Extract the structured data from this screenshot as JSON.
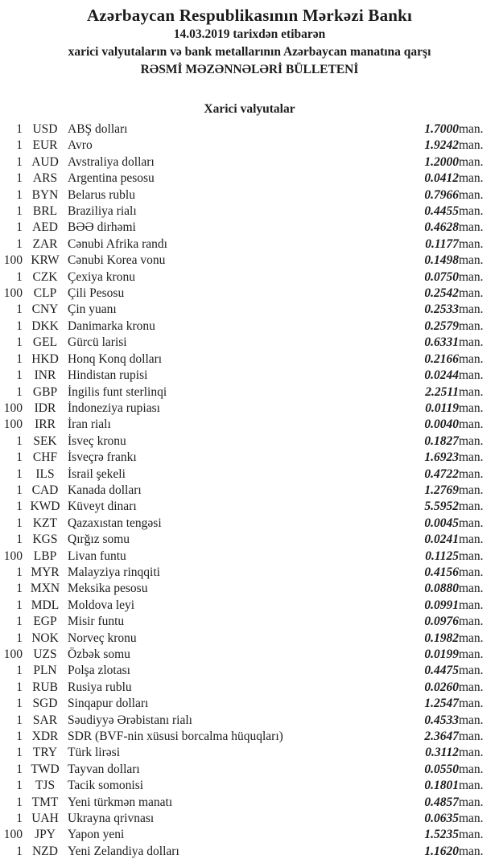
{
  "header": {
    "title": "Azərbaycan Respublikasının Mərkəzi Bankı",
    "date_line": "14.03.2019 tarixdən etibarən",
    "subtitle": "xarici valyutaların və bank metallarının Azərbaycan manatına qarşı",
    "bulletin_line": "RƏSMİ MƏZƏNNƏLƏRİ BÜLLETENİ"
  },
  "section": {
    "title": "Xarici valyutalar"
  },
  "unit_label": "man.",
  "rates": [
    {
      "qty": "1",
      "code": "USD",
      "name": "ABŞ dolları",
      "rate": "1.7000"
    },
    {
      "qty": "1",
      "code": "EUR",
      "name": "Avro",
      "rate": "1.9242"
    },
    {
      "qty": "1",
      "code": "AUD",
      "name": "Avstraliya dolları",
      "rate": "1.2000"
    },
    {
      "qty": "1",
      "code": "ARS",
      "name": "Argentina pesosu",
      "rate": "0.0412"
    },
    {
      "qty": "1",
      "code": "BYN",
      "name": "Belarus rublu",
      "rate": "0.7966"
    },
    {
      "qty": "1",
      "code": "BRL",
      "name": "Braziliya rialı",
      "rate": "0.4455"
    },
    {
      "qty": "1",
      "code": "AED",
      "name": "BƏƏ dirhəmi",
      "rate": "0.4628"
    },
    {
      "qty": "1",
      "code": "ZAR",
      "name": "Cənubi Afrika randı",
      "rate": "0.1177"
    },
    {
      "qty": "100",
      "code": "KRW",
      "name": "Cənubi Korea vonu",
      "rate": "0.1498"
    },
    {
      "qty": "1",
      "code": "CZK",
      "name": "Çexiya kronu",
      "rate": "0.0750"
    },
    {
      "qty": "100",
      "code": "CLP",
      "name": "Çili Pesosu",
      "rate": "0.2542"
    },
    {
      "qty": "1",
      "code": "CNY",
      "name": "Çin yuanı",
      "rate": "0.2533"
    },
    {
      "qty": "1",
      "code": "DKK",
      "name": "Danimarka kronu",
      "rate": "0.2579"
    },
    {
      "qty": "1",
      "code": "GEL",
      "name": "Gürcü larisi",
      "rate": "0.6331"
    },
    {
      "qty": "1",
      "code": "HKD",
      "name": "Honq Konq dolları",
      "rate": "0.2166"
    },
    {
      "qty": "1",
      "code": "INR",
      "name": "Hindistan rupisi",
      "rate": "0.0244"
    },
    {
      "qty": "1",
      "code": "GBP",
      "name": "İngilis funt sterlinqi",
      "rate": "2.2511"
    },
    {
      "qty": "100",
      "code": "IDR",
      "name": "İndoneziya rupiası",
      "rate": "0.0119"
    },
    {
      "qty": "100",
      "code": "IRR",
      "name": "İran rialı",
      "rate": "0.0040"
    },
    {
      "qty": "1",
      "code": "SEK",
      "name": "İsveç kronu",
      "rate": "0.1827"
    },
    {
      "qty": "1",
      "code": "CHF",
      "name": "İsveçrə frankı",
      "rate": "1.6923"
    },
    {
      "qty": "1",
      "code": "ILS",
      "name": "İsrail şekeli",
      "rate": "0.4722"
    },
    {
      "qty": "1",
      "code": "CAD",
      "name": "Kanada dolları",
      "rate": "1.2769"
    },
    {
      "qty": "1",
      "code": "KWD",
      "name": "Küveyt dinarı",
      "rate": "5.5952"
    },
    {
      "qty": "1",
      "code": "KZT",
      "name": "Qazaxıstan tengəsi",
      "rate": "0.0045"
    },
    {
      "qty": "1",
      "code": "KGS",
      "name": "Qırğız somu",
      "rate": "0.0241"
    },
    {
      "qty": "100",
      "code": "LBP",
      "name": "Livan funtu",
      "rate": "0.1125"
    },
    {
      "qty": "1",
      "code": "MYR",
      "name": "Malayziya rinqqiti",
      "rate": "0.4156"
    },
    {
      "qty": "1",
      "code": "MXN",
      "name": "Meksika pesosu",
      "rate": "0.0880"
    },
    {
      "qty": "1",
      "code": "MDL",
      "name": "Moldova leyi",
      "rate": "0.0991"
    },
    {
      "qty": "1",
      "code": "EGP",
      "name": "Misir funtu",
      "rate": "0.0976"
    },
    {
      "qty": "1",
      "code": "NOK",
      "name": "Norveç kronu",
      "rate": "0.1982"
    },
    {
      "qty": "100",
      "code": "UZS",
      "name": "Özbək somu",
      "rate": "0.0199"
    },
    {
      "qty": "1",
      "code": "PLN",
      "name": "Polşa zlotası",
      "rate": "0.4475"
    },
    {
      "qty": "1",
      "code": "RUB",
      "name": "Rusiya rublu",
      "rate": "0.0260"
    },
    {
      "qty": "1",
      "code": "SGD",
      "name": "Sinqapur dolları",
      "rate": "1.2547"
    },
    {
      "qty": "1",
      "code": "SAR",
      "name": "Səudiyyə Ərəbistanı rialı",
      "rate": "0.4533"
    },
    {
      "qty": "1",
      "code": "XDR",
      "name": "SDR (BVF-nin xüsusi borcalma hüquqları)",
      "rate": "2.3647"
    },
    {
      "qty": "1",
      "code": "TRY",
      "name": "Türk lirəsi",
      "rate": "0.3112"
    },
    {
      "qty": "1",
      "code": "TWD",
      "name": "Tayvan dolları",
      "rate": "0.0550"
    },
    {
      "qty": "1",
      "code": "TJS",
      "name": "Tacik somonisi",
      "rate": "0.1801"
    },
    {
      "qty": "1",
      "code": "TMT",
      "name": "Yeni türkmən manatı",
      "rate": "0.4857"
    },
    {
      "qty": "1",
      "code": "UAH",
      "name": "Ukrayna qrivnası",
      "rate": "0.0635"
    },
    {
      "qty": "100",
      "code": "JPY",
      "name": "Yapon yeni",
      "rate": "1.5235"
    },
    {
      "qty": "1",
      "code": "NZD",
      "name": "Yeni Zelandiya dolları",
      "rate": "1.1620"
    }
  ]
}
